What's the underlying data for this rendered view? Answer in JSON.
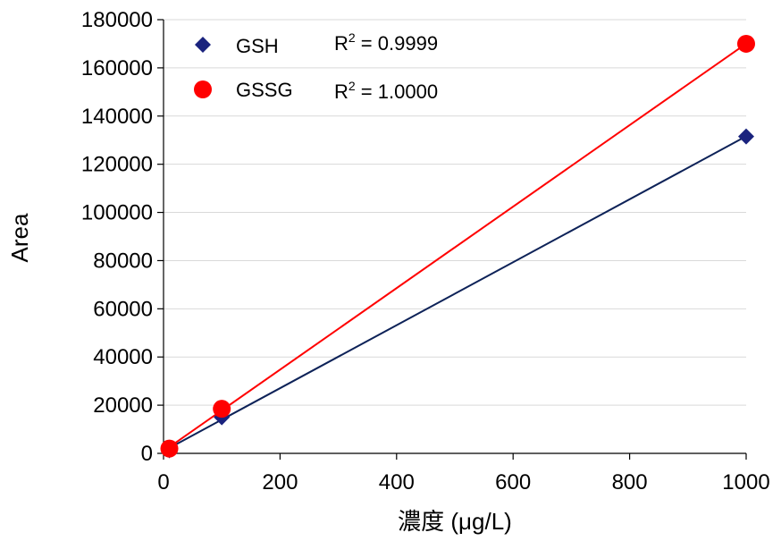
{
  "chart_data": {
    "type": "scatter",
    "title": "",
    "xlabel": "濃度 (μg/L)",
    "ylabel": "Area",
    "xlim": [
      0,
      1000
    ],
    "ylim": [
      0,
      180000
    ],
    "x_ticks": [
      0,
      200,
      400,
      600,
      800,
      1000
    ],
    "y_ticks": [
      0,
      20000,
      40000,
      60000,
      80000,
      100000,
      120000,
      140000,
      160000,
      180000
    ],
    "grid": "horizontal",
    "legend_position": "top-left",
    "series": [
      {
        "name": "GSH",
        "marker": "diamond",
        "color": "#1a237e",
        "line_color": "#0d2258",
        "x": [
          10,
          100,
          1000
        ],
        "y": [
          1300,
          15000,
          131500
        ],
        "r2_label": "R",
        "r2_sup": "2",
        "r2_value": " = 0.9999"
      },
      {
        "name": "GSSG",
        "marker": "circle",
        "color": "#ff0000",
        "line_color": "#ff0000",
        "x": [
          10,
          100,
          1000
        ],
        "y": [
          2000,
          18500,
          170000
        ],
        "r2_label": "R",
        "r2_sup": "2",
        "r2_value": " = 1.0000"
      }
    ]
  }
}
